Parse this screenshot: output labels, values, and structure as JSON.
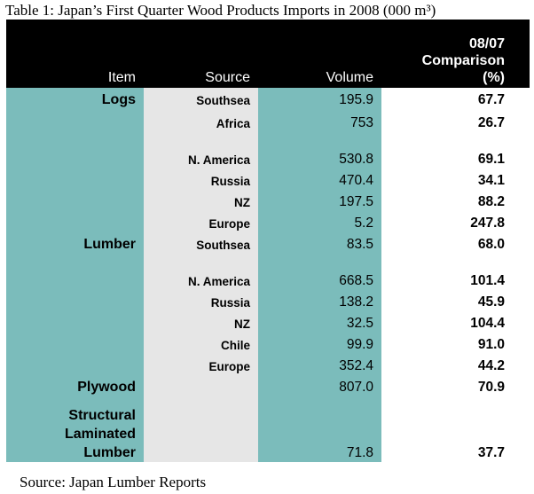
{
  "caption": "Table 1: Japan’s First Quarter Wood Products Imports in 2008 (000 m³)",
  "headers": {
    "item": "Item",
    "source": "Source",
    "volume": "Volume",
    "comparison_line1": "08/07",
    "comparison_line2": "Comparison",
    "comparison_line3": "(%)"
  },
  "rows": [
    {
      "item": "Logs",
      "source": "Southsea",
      "volume": "195.9",
      "comparison": "67.7"
    },
    {
      "item": "",
      "source": "Africa",
      "volume": "753",
      "comparison": "26.7"
    },
    {
      "item": "",
      "source": "",
      "volume": "",
      "comparison": ""
    },
    {
      "item": "",
      "source": "N. America",
      "volume": "530.8",
      "comparison": "69.1"
    },
    {
      "item": "",
      "source": "Russia",
      "volume": "470.4",
      "comparison": "34.1"
    },
    {
      "item": "",
      "source": "NZ",
      "volume": "197.5",
      "comparison": "88.2"
    },
    {
      "item": "",
      "source": "Europe",
      "volume": "5.2",
      "comparison": "247.8"
    },
    {
      "item": "Lumber",
      "source": "Southsea",
      "volume": "83.5",
      "comparison": "68.0"
    },
    {
      "item": "",
      "source": "",
      "volume": "",
      "comparison": ""
    },
    {
      "item": "",
      "source": "N. America",
      "volume": "668.5",
      "comparison": "101.4"
    },
    {
      "item": "",
      "source": "Russia",
      "volume": "138.2",
      "comparison": "45.9"
    },
    {
      "item": "",
      "source": "NZ",
      "volume": "32.5",
      "comparison": "104.4"
    },
    {
      "item": "",
      "source": "Chile",
      "volume": "99.9",
      "comparison": "91.0"
    },
    {
      "item": "",
      "source": "Europe",
      "volume": "352.4",
      "comparison": "44.2"
    },
    {
      "item": "Plywood",
      "source": "",
      "volume": "807.0",
      "comparison": "70.9"
    },
    {
      "item": "Structural Laminated Lumber",
      "source": "",
      "volume": "71.8",
      "comparison": "37.7"
    }
  ],
  "source_note": "Source: Japan Lumber Reports",
  "colors": {
    "header_bg": "#000000",
    "teal": "#7bbcbb",
    "grey": "#e6e6e6"
  }
}
